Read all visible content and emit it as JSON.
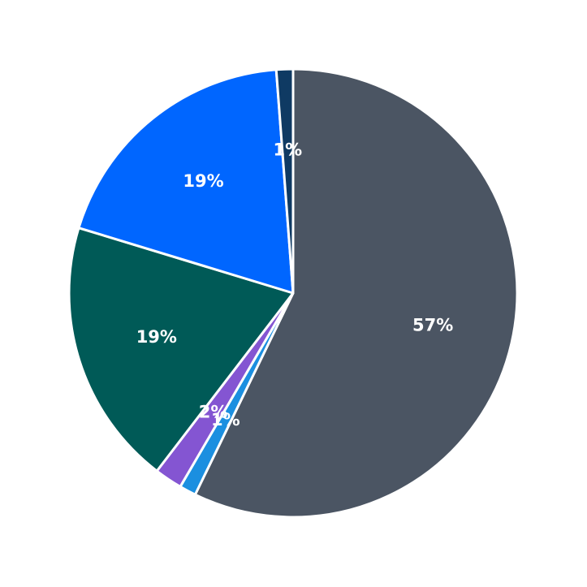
{
  "chart_data": {
    "type": "pie",
    "title": "",
    "start_angle_deg": 90,
    "direction": "clockwise",
    "legend": "none",
    "slices": [
      {
        "value": 57.2,
        "label": "57%",
        "color": "#4b5563"
      },
      {
        "value": 1.2,
        "label": "1%",
        "color": "#1b8fe0"
      },
      {
        "value": 2.0,
        "label": "2%",
        "color": "#8455d2"
      },
      {
        "value": 19.3,
        "label": "19%",
        "color": "#005a57"
      },
      {
        "value": 19.1,
        "label": "19%",
        "color": "#0066ff"
      },
      {
        "value": 1.2,
        "label": "1%",
        "color": "#0f3a63"
      }
    ]
  }
}
